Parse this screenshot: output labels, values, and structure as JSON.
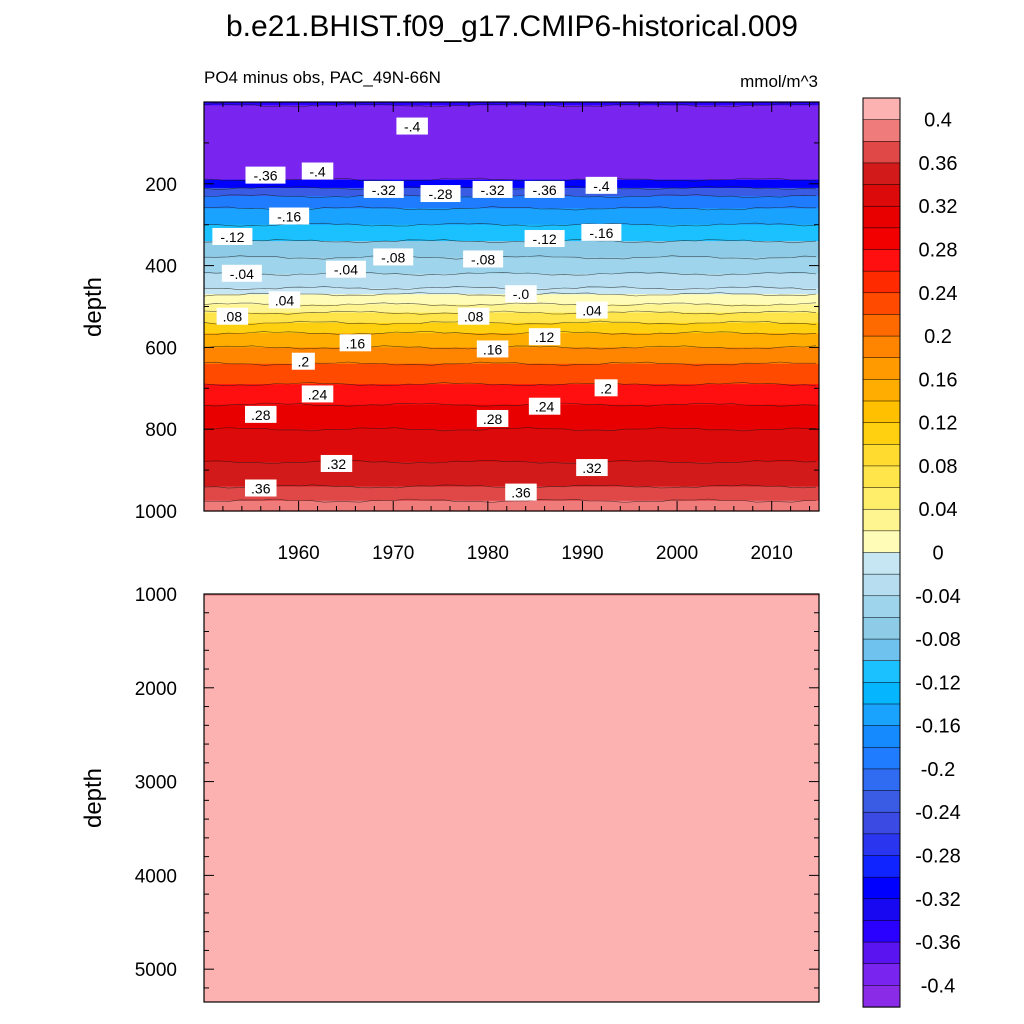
{
  "title": "b.e21.BHIST.f09_g17.CMIP6-historical.009",
  "chart_data": {
    "type": "heatmap",
    "subtitle": "PO4 minus obs, PAC_49N-66N",
    "units": "mmol/m^3",
    "ylabel": "depth",
    "x_tick_labels": [
      "1960",
      "1970",
      "1980",
      "1990",
      "2000",
      "2010"
    ],
    "xlim": [
      1950,
      2015
    ],
    "panels": [
      {
        "name": "upper",
        "ylim": [
          0,
          1000
        ],
        "y_tick_labels": [
          "200",
          "400",
          "600",
          "800",
          "1000"
        ],
        "layers": [
          {
            "from": 0,
            "to": 8,
            "level": -0.36
          },
          {
            "from": 8,
            "to": 190,
            "level": -0.4
          },
          {
            "from": 190,
            "to": 210,
            "level": -0.32
          },
          {
            "from": 210,
            "to": 230,
            "level": -0.24
          },
          {
            "from": 230,
            "to": 260,
            "level": -0.2
          },
          {
            "from": 260,
            "to": 300,
            "level": -0.16
          },
          {
            "from": 300,
            "to": 340,
            "level": -0.12
          },
          {
            "from": 340,
            "to": 380,
            "level": -0.08
          },
          {
            "from": 380,
            "to": 420,
            "level": -0.06
          },
          {
            "from": 420,
            "to": 455,
            "level": -0.04
          },
          {
            "from": 455,
            "to": 470,
            "level": -0.02
          },
          {
            "from": 470,
            "to": 495,
            "level": 0.0
          },
          {
            "from": 495,
            "to": 515,
            "level": 0.02
          },
          {
            "from": 515,
            "to": 540,
            "level": 0.06
          },
          {
            "from": 540,
            "to": 565,
            "level": 0.1
          },
          {
            "from": 565,
            "to": 600,
            "level": 0.14
          },
          {
            "from": 600,
            "to": 640,
            "level": 0.18
          },
          {
            "from": 640,
            "to": 690,
            "level": 0.22
          },
          {
            "from": 690,
            "to": 740,
            "level": 0.26
          },
          {
            "from": 740,
            "to": 800,
            "level": 0.3
          },
          {
            "from": 800,
            "to": 880,
            "level": 0.32
          },
          {
            "from": 880,
            "to": 940,
            "level": 0.34
          },
          {
            "from": 940,
            "to": 975,
            "level": 0.36
          },
          {
            "from": 975,
            "to": 1000,
            "level": 0.38
          }
        ],
        "contour_labels": [
          {
            "text": "-.4",
            "year": 1972,
            "depth": 60
          },
          {
            "text": "-.36",
            "year": 1956.5,
            "depth": 180
          },
          {
            "text": "-.4",
            "year": 1962,
            "depth": 170
          },
          {
            "text": "-.32",
            "year": 1969,
            "depth": 215
          },
          {
            "text": "-.28",
            "year": 1975,
            "depth": 225
          },
          {
            "text": "-.32",
            "year": 1980.5,
            "depth": 215
          },
          {
            "text": "-.36",
            "year": 1986,
            "depth": 215
          },
          {
            "text": "-.4",
            "year": 1992,
            "depth": 205
          },
          {
            "text": "-.16",
            "year": 1959,
            "depth": 280
          },
          {
            "text": "-.12",
            "year": 1953,
            "depth": 330
          },
          {
            "text": "-.12",
            "year": 1986,
            "depth": 335
          },
          {
            "text": "-.16",
            "year": 1992,
            "depth": 320
          },
          {
            "text": "-.08",
            "year": 1970,
            "depth": 380
          },
          {
            "text": "-.08",
            "year": 1979.5,
            "depth": 385
          },
          {
            "text": "-.04",
            "year": 1954,
            "depth": 420
          },
          {
            "text": "-.04",
            "year": 1965,
            "depth": 410
          },
          {
            "text": "-.0",
            "year": 1983.5,
            "depth": 470
          },
          {
            "text": ".04",
            "year": 1958.5,
            "depth": 485
          },
          {
            "text": ".04",
            "year": 1991,
            "depth": 510
          },
          {
            "text": ".08",
            "year": 1953,
            "depth": 525
          },
          {
            "text": ".08",
            "year": 1978.5,
            "depth": 525
          },
          {
            "text": ".12",
            "year": 1986,
            "depth": 575
          },
          {
            "text": ".16",
            "year": 1966,
            "depth": 590
          },
          {
            "text": ".16",
            "year": 1980.5,
            "depth": 605
          },
          {
            "text": ".2",
            "year": 1960.5,
            "depth": 635
          },
          {
            "text": ".2",
            "year": 1992.5,
            "depth": 700
          },
          {
            "text": ".24",
            "year": 1962,
            "depth": 715
          },
          {
            "text": ".24",
            "year": 1986,
            "depth": 745
          },
          {
            "text": ".28",
            "year": 1956,
            "depth": 765
          },
          {
            "text": ".28",
            "year": 1980.5,
            "depth": 775
          },
          {
            "text": ".32",
            "year": 1964,
            "depth": 885
          },
          {
            "text": ".32",
            "year": 1991,
            "depth": 895
          },
          {
            "text": ".36",
            "year": 1956,
            "depth": 945
          },
          {
            "text": ".36",
            "year": 1983.5,
            "depth": 955
          }
        ]
      },
      {
        "name": "lower",
        "ylim": [
          1000,
          5350
        ],
        "y_tick_labels": [
          "1000",
          "2000",
          "3000",
          "4000",
          "5000"
        ],
        "fill_level": 0.4
      }
    ],
    "colorbar": {
      "levels": [
        0.4,
        0.38,
        0.36,
        0.34,
        0.32,
        0.3,
        0.28,
        0.26,
        0.24,
        0.22,
        0.2,
        0.18,
        0.16,
        0.14,
        0.12,
        0.1,
        0.08,
        0.06,
        0.04,
        0.02,
        0.0,
        -0.02,
        -0.04,
        -0.06,
        -0.08,
        -0.1,
        -0.12,
        -0.14,
        -0.16,
        -0.18,
        -0.2,
        -0.22,
        -0.24,
        -0.26,
        -0.28,
        -0.3,
        -0.32,
        -0.34,
        -0.36,
        -0.38,
        -0.4,
        -0.42
      ],
      "colors": [
        "#fdb2b2",
        "#f07b7b",
        "#e04848",
        "#d21a1a",
        "#dc0a0a",
        "#e80000",
        "#f20000",
        "#ff0f0f",
        "#ff2a00",
        "#ff4a00",
        "#ff6a00",
        "#ff8400",
        "#ff9a00",
        "#ffad00",
        "#ffc000",
        "#ffd010",
        "#ffdb30",
        "#ffe54a",
        "#ffee6a",
        "#fff590",
        "#fffcb8",
        "#c6e6f4",
        "#b6def0",
        "#9fd5ec",
        "#8ecbe6",
        "#70c2ee",
        "#1bc1ff",
        "#05b6ff",
        "#1aa2ff",
        "#158aff",
        "#1f7cff",
        "#2f6cf2",
        "#3a5ce4",
        "#3b4ae2",
        "#2a35f0",
        "#1024ff",
        "#0000ff",
        "#1808f2",
        "#2a00ff",
        "#5a14f0",
        "#7a24f0",
        "#8a2be8"
      ],
      "tick_labels": [
        "0.4",
        "0.36",
        "0.32",
        "0.28",
        "0.24",
        "0.2",
        "0.16",
        "0.12",
        "0.08",
        "0.04",
        "0",
        "-0.04",
        "-0.08",
        "-0.12",
        "-0.16",
        "-0.2",
        "-0.24",
        "-0.28",
        "-0.32",
        "-0.36",
        "-0.4"
      ]
    }
  }
}
